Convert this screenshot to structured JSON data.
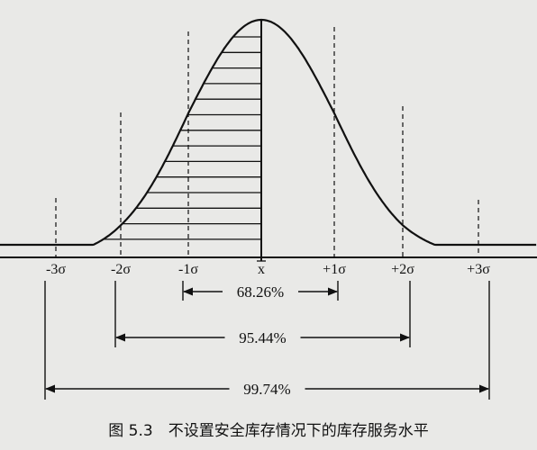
{
  "caption": "图 5.3　不设置安全库存情况下的库存服务水平",
  "axis": {
    "ticks": [
      {
        "label": "-3σ",
        "sigma": -3
      },
      {
        "label": "-2σ",
        "sigma": -2
      },
      {
        "label": "-1σ",
        "sigma": -1
      },
      {
        "label": "x",
        "sigma": 0,
        "overline": true
      },
      {
        "label": "+1σ",
        "sigma": 1
      },
      {
        "label": "+2σ",
        "sigma": 2
      },
      {
        "label": "+3σ",
        "sigma": 3
      }
    ]
  },
  "intervals": [
    {
      "label": "68.26%",
      "from_sigma": -1,
      "to_sigma": 1
    },
    {
      "label": "95.44%",
      "from_sigma": -2,
      "to_sigma": 2
    },
    {
      "label": "99.74%",
      "from_sigma": -3,
      "to_sigma": 3
    }
  ],
  "shading": {
    "style": "horizontal-hatching",
    "from_sigma": "-inf",
    "to_sigma": 0
  },
  "colors": {
    "paper": "#e9e9e7",
    "ink": "#111111"
  }
}
